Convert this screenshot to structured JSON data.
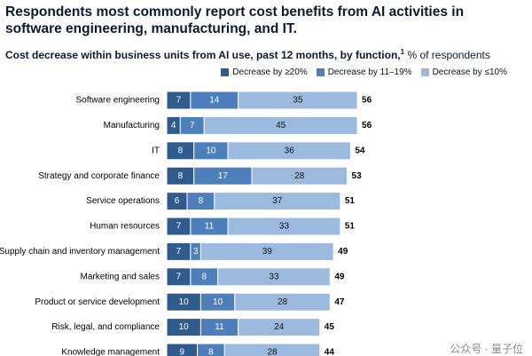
{
  "chart_data": {
    "type": "stacked-bar",
    "title": "Respondents most commonly report cost benefits from AI activities in software engineering, manufacturing, and IT.",
    "subtitle": "Cost decrease within business units from AI use, past 12 months, by function,",
    "footnote_marker": "1",
    "subtitle_unit": "% of respondents",
    "categories": [
      "Software engineering",
      "Manufacturing",
      "IT",
      "Strategy and corporate finance",
      "Service operations",
      "Human resources",
      "Supply chain and inventory management",
      "Marketing and sales",
      "Product or service development",
      "Risk, legal, and compliance",
      "Knowledge management"
    ],
    "series": [
      {
        "name": "Decrease by ≥20%",
        "color": "#2f5b8e",
        "values": [
          7,
          4,
          8,
          8,
          6,
          7,
          7,
          7,
          10,
          10,
          9
        ]
      },
      {
        "name": "Decrease by 11–19%",
        "color": "#4e7fbd",
        "values": [
          14,
          7,
          10,
          17,
          8,
          11,
          3,
          8,
          10,
          11,
          8
        ]
      },
      {
        "name": "Decrease by ≤10%",
        "color": "#9cbade",
        "values": [
          35,
          45,
          36,
          28,
          37,
          33,
          39,
          33,
          28,
          24,
          28
        ]
      }
    ],
    "totals": [
      56,
      56,
      54,
      53,
      51,
      51,
      49,
      49,
      47,
      45,
      44
    ],
    "watermark": "公众号 · 量子位"
  }
}
